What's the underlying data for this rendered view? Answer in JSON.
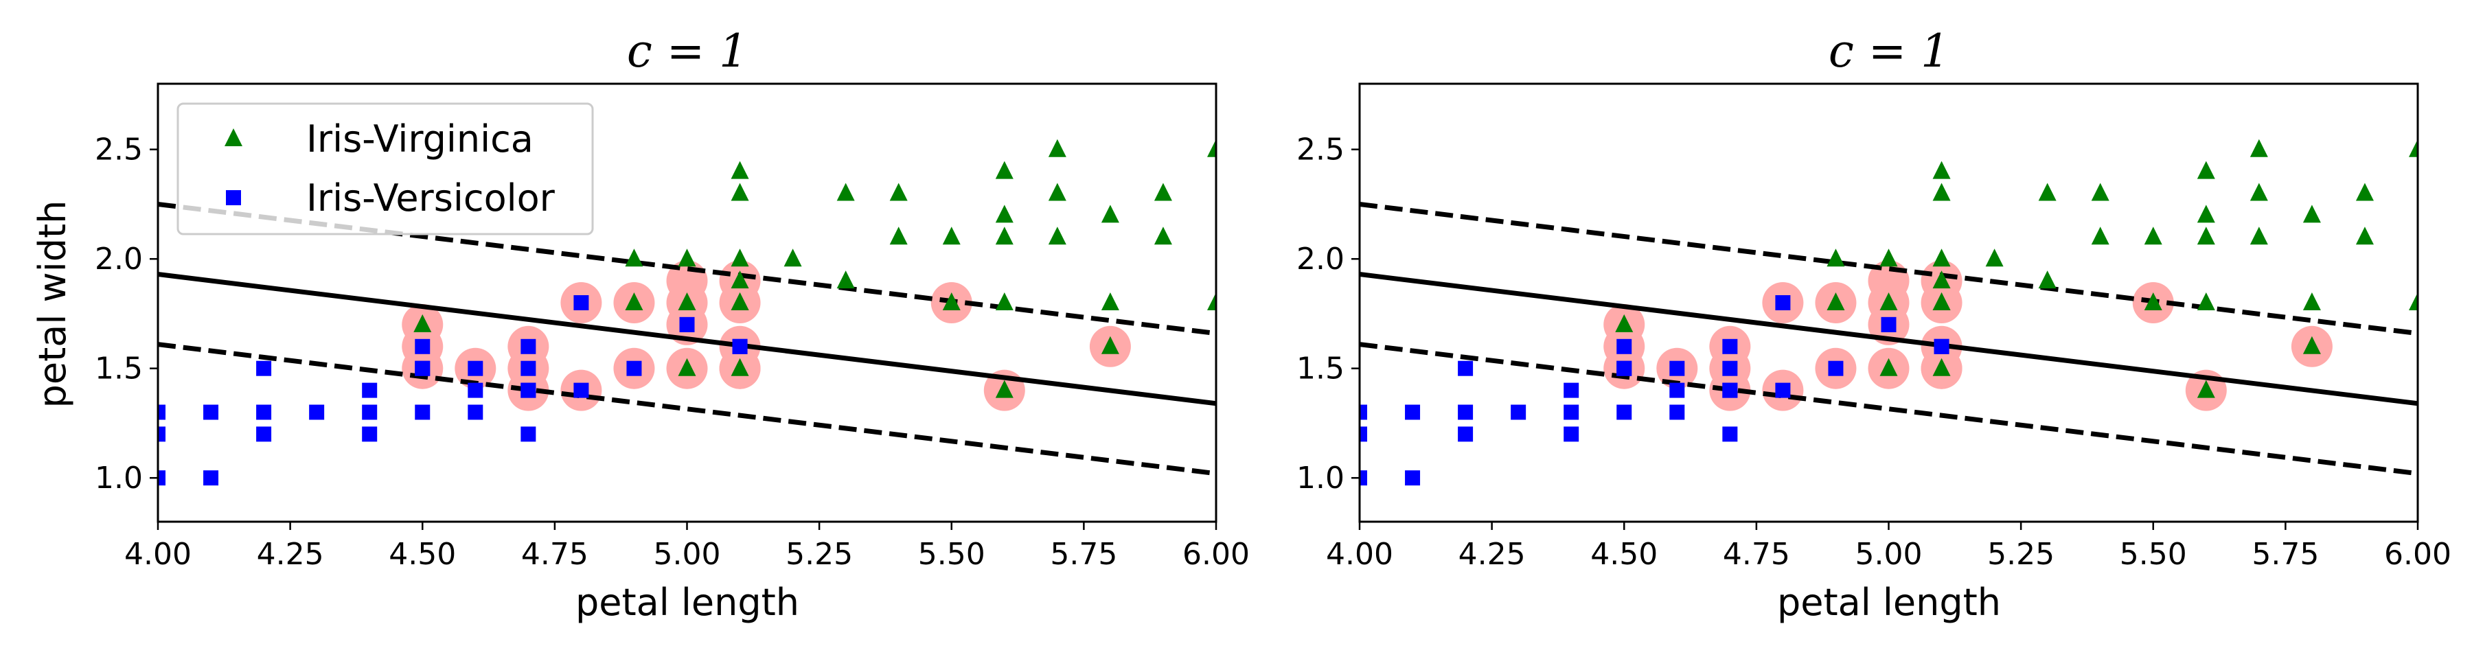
{
  "colors": {
    "virginica": "#008000",
    "versicolor": "#0000ff",
    "support_vector": "#ffaaaa",
    "line": "#000000",
    "legend_border": "#cccccc"
  },
  "chart_data": [
    {
      "type": "scatter",
      "title": "c = 1",
      "xlabel": "petal length",
      "ylabel": "petal width",
      "xlim": [
        4.0,
        6.0
      ],
      "ylim": [
        0.8,
        2.8
      ],
      "xticks": [
        "4.00",
        "4.25",
        "4.50",
        "4.75",
        "5.00",
        "5.25",
        "5.50",
        "5.75",
        "6.00"
      ],
      "yticks": [
        "1.0",
        "1.5",
        "2.0",
        "2.5"
      ],
      "legend": {
        "location": "upper-left",
        "entries": [
          "Iris-Virginica",
          "Iris-Versicolor"
        ]
      },
      "series": [
        {
          "name": "Iris-Virginica",
          "marker": "triangle",
          "x": [
            4.5,
            4.9,
            5.0,
            5.0,
            5.1,
            5.1,
            5.1,
            5.1,
            5.1,
            5.1,
            5.2,
            5.3,
            5.3,
            5.4,
            5.4,
            5.5,
            5.5,
            5.6,
            5.6,
            5.6,
            5.6,
            5.6,
            5.7,
            5.7,
            5.7,
            5.8,
            5.8,
            5.8,
            5.9,
            5.9,
            6.0,
            6.0,
            4.9,
            5.0,
            5.1
          ],
          "y": [
            1.7,
            1.8,
            2.0,
            1.5,
            2.4,
            2.3,
            2.0,
            1.9,
            1.8,
            1.5,
            2.0,
            2.3,
            1.9,
            2.3,
            2.1,
            2.1,
            1.8,
            2.4,
            2.2,
            2.1,
            1.8,
            1.4,
            2.5,
            2.3,
            2.1,
            2.2,
            1.8,
            1.6,
            2.3,
            2.1,
            2.5,
            1.8,
            2.0,
            1.8,
            1.8
          ]
        },
        {
          "name": "Iris-Versicolor",
          "marker": "square",
          "x": [
            4.0,
            4.0,
            4.0,
            4.0,
            4.1,
            4.1,
            4.2,
            4.2,
            4.2,
            4.3,
            4.4,
            4.4,
            4.4,
            4.5,
            4.5,
            4.5,
            4.5,
            4.6,
            4.6,
            4.6,
            4.7,
            4.7,
            4.7,
            4.7,
            4.7,
            4.8,
            4.8,
            4.9,
            5.0,
            5.0,
            5.1,
            5.1
          ],
          "y": [
            1.0,
            1.2,
            1.3,
            1.3,
            1.0,
            1.3,
            1.5,
            1.3,
            1.2,
            1.3,
            1.4,
            1.3,
            1.2,
            1.6,
            1.5,
            1.5,
            1.3,
            1.5,
            1.4,
            1.3,
            1.6,
            1.5,
            1.4,
            1.2,
            1.4,
            1.8,
            1.4,
            1.5,
            1.7,
            1.7,
            1.6,
            1.6
          ]
        },
        {
          "name": "",
          "marker": "circle",
          "x": [
            4.5,
            4.5,
            4.5,
            4.6,
            4.7,
            4.7,
            4.7,
            4.8,
            4.8,
            4.9,
            4.9,
            5.0,
            5.0,
            5.0,
            5.0,
            5.1,
            5.1,
            5.1,
            5.1,
            5.1,
            5.5,
            5.6,
            5.8
          ],
          "y": [
            1.7,
            1.6,
            1.5,
            1.5,
            1.6,
            1.5,
            1.4,
            1.8,
            1.4,
            1.8,
            1.5,
            1.9,
            1.8,
            1.7,
            1.5,
            1.9,
            1.8,
            1.6,
            1.5,
            1.5,
            1.8,
            1.4,
            1.6
          ]
        }
      ],
      "lines": [
        {
          "style": "solid",
          "x": [
            4.0,
            6.0
          ],
          "y": [
            1.93,
            1.34
          ]
        },
        {
          "style": "dashed",
          "x": [
            4.0,
            6.0
          ],
          "y": [
            2.25,
            1.66
          ]
        },
        {
          "style": "dashed",
          "x": [
            4.0,
            6.0
          ],
          "y": [
            1.61,
            1.02
          ]
        }
      ]
    },
    {
      "type": "scatter",
      "title": "c = 1",
      "xlabel": "petal length",
      "ylabel": "",
      "xlim": [
        4.0,
        6.0
      ],
      "ylim": [
        0.8,
        2.8
      ],
      "xticks": [
        "4.00",
        "4.25",
        "4.50",
        "4.75",
        "5.00",
        "5.25",
        "5.50",
        "5.75",
        "6.00"
      ],
      "yticks": [
        "1.0",
        "1.5",
        "2.0",
        "2.5"
      ],
      "legend": null,
      "series": [
        {
          "name": "Iris-Virginica",
          "marker": "triangle",
          "x": [
            4.5,
            4.9,
            5.0,
            5.0,
            5.1,
            5.1,
            5.1,
            5.1,
            5.1,
            5.1,
            5.2,
            5.3,
            5.3,
            5.4,
            5.4,
            5.5,
            5.5,
            5.6,
            5.6,
            5.6,
            5.6,
            5.6,
            5.7,
            5.7,
            5.7,
            5.8,
            5.8,
            5.8,
            5.9,
            5.9,
            6.0,
            6.0,
            4.9,
            5.0,
            5.1
          ],
          "y": [
            1.7,
            1.8,
            2.0,
            1.5,
            2.4,
            2.3,
            2.0,
            1.9,
            1.8,
            1.5,
            2.0,
            2.3,
            1.9,
            2.3,
            2.1,
            2.1,
            1.8,
            2.4,
            2.2,
            2.1,
            1.8,
            1.4,
            2.5,
            2.3,
            2.1,
            2.2,
            1.8,
            1.6,
            2.3,
            2.1,
            2.5,
            1.8,
            2.0,
            1.8,
            1.8
          ]
        },
        {
          "name": "Iris-Versicolor",
          "marker": "square",
          "x": [
            4.0,
            4.0,
            4.0,
            4.0,
            4.1,
            4.1,
            4.2,
            4.2,
            4.2,
            4.3,
            4.4,
            4.4,
            4.4,
            4.5,
            4.5,
            4.5,
            4.5,
            4.6,
            4.6,
            4.6,
            4.7,
            4.7,
            4.7,
            4.7,
            4.7,
            4.8,
            4.8,
            4.9,
            5.0,
            5.0,
            5.1,
            5.1
          ],
          "y": [
            1.0,
            1.2,
            1.3,
            1.3,
            1.0,
            1.3,
            1.5,
            1.3,
            1.2,
            1.3,
            1.4,
            1.3,
            1.2,
            1.6,
            1.5,
            1.5,
            1.3,
            1.5,
            1.4,
            1.3,
            1.6,
            1.5,
            1.4,
            1.2,
            1.4,
            1.8,
            1.4,
            1.5,
            1.7,
            1.7,
            1.6,
            1.6
          ]
        },
        {
          "name": "",
          "marker": "circle",
          "x": [
            4.5,
            4.5,
            4.5,
            4.6,
            4.7,
            4.7,
            4.7,
            4.8,
            4.8,
            4.9,
            4.9,
            5.0,
            5.0,
            5.0,
            5.0,
            5.1,
            5.1,
            5.1,
            5.1,
            5.1,
            5.5,
            5.6,
            5.8
          ],
          "y": [
            1.7,
            1.6,
            1.5,
            1.5,
            1.6,
            1.5,
            1.4,
            1.8,
            1.4,
            1.8,
            1.5,
            1.9,
            1.8,
            1.7,
            1.5,
            1.9,
            1.8,
            1.6,
            1.5,
            1.5,
            1.8,
            1.4,
            1.6
          ]
        }
      ],
      "lines": [
        {
          "style": "solid",
          "x": [
            4.0,
            6.0
          ],
          "y": [
            1.93,
            1.34
          ]
        },
        {
          "style": "dashed",
          "x": [
            4.0,
            6.0
          ],
          "y": [
            2.25,
            1.66
          ]
        },
        {
          "style": "dashed",
          "x": [
            4.0,
            6.0
          ],
          "y": [
            1.61,
            1.02
          ]
        }
      ]
    }
  ]
}
